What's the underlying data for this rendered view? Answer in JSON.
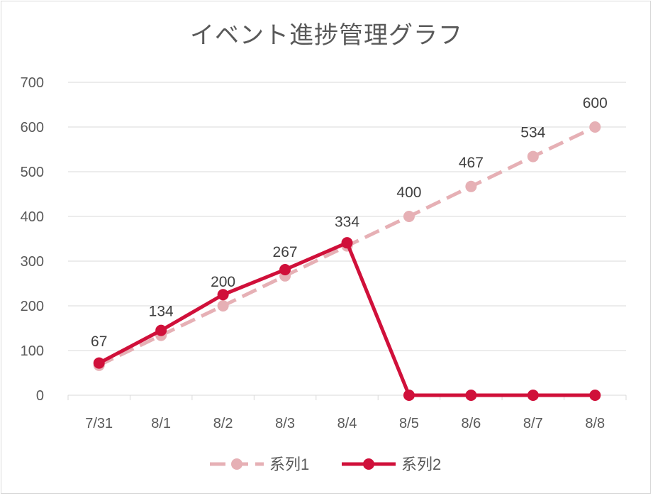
{
  "chart_data": {
    "type": "line",
    "title": "イベント進捗管理グラフ",
    "xlabel": "",
    "ylabel": "",
    "categories": [
      "7/31",
      "8/1",
      "8/2",
      "8/3",
      "8/4",
      "8/5",
      "8/6",
      "8/7",
      "8/8"
    ],
    "ylim": [
      0,
      700
    ],
    "yticks": [
      0,
      100,
      200,
      300,
      400,
      500,
      600,
      700
    ],
    "grid": true,
    "legend_position": "bottom",
    "series": [
      {
        "name": "系列1",
        "values": [
          67,
          134,
          200,
          267,
          334,
          400,
          467,
          534,
          600
        ],
        "data_labels": [
          "67",
          "134",
          "200",
          "267",
          "334",
          "400",
          "467",
          "534",
          "600"
        ],
        "color": "#e6b0b5",
        "line_style": "dashed"
      },
      {
        "name": "系列2",
        "values": [
          72,
          145,
          225,
          281,
          341,
          0,
          0,
          0,
          0
        ],
        "color": "#d0103a",
        "line_style": "solid"
      }
    ]
  }
}
